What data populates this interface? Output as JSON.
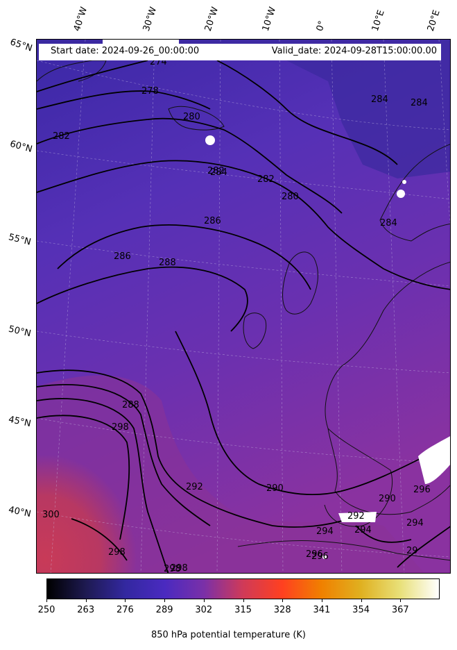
{
  "header": {
    "start_date": "Start date: 2024-09-26_00:00:00",
    "valid_date": "Valid_date: 2024-09-28T15:00:00.00"
  },
  "longitude_labels": [
    "40°W",
    "30°W",
    "20°W",
    "10°W",
    "0°",
    "10°E",
    "20°E"
  ],
  "latitude_labels": [
    "65°N",
    "60°N",
    "55°N",
    "50°N",
    "45°N",
    "40°N"
  ],
  "contour_labels": [
    "274",
    "278",
    "280",
    "282",
    "282",
    "282",
    "284",
    "284",
    "284",
    "284",
    "280",
    "286",
    "286",
    "288",
    "288",
    "290",
    "292",
    "294",
    "294",
    "296",
    "296",
    "298",
    "298",
    "298",
    "298",
    "300",
    "290",
    "292",
    "296",
    "294",
    "29"
  ],
  "colorbar": {
    "ticks": [
      "250",
      "263",
      "276",
      "289",
      "302",
      "315",
      "328",
      "341",
      "354",
      "367"
    ],
    "label": "850 hPa potential temperature (K)",
    "colors": [
      "#000000",
      "#1e1a52",
      "#3328a0",
      "#4a2ac0",
      "#7a30a8",
      "#d03a58",
      "#ff4020",
      "#f08000",
      "#e0b020",
      "#e8e078",
      "#ffffff"
    ]
  },
  "field_colors": {
    "cold": "#3a2aa8",
    "mid": "#5a30b8",
    "warm": "#7a30a8",
    "hot": "#c23a58"
  }
}
